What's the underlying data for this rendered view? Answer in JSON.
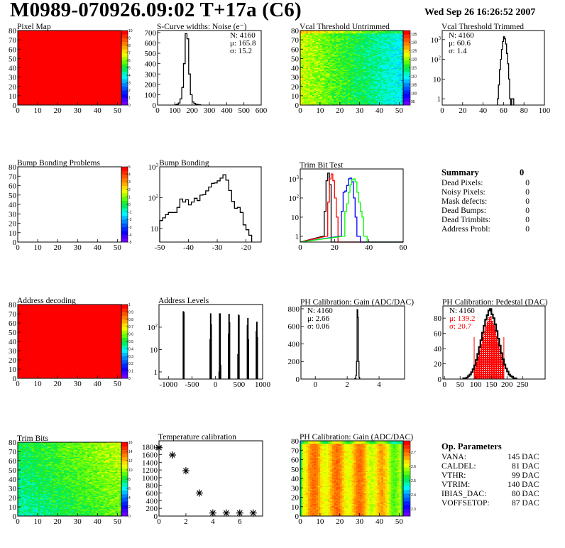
{
  "header": {
    "title": "M0989-070926.09:02 T+17a (C6)",
    "date": "Wed Sep 26 16:26:52 2007"
  },
  "summary": {
    "title": "Summary",
    "total": "0",
    "rows": [
      {
        "label": "Dead Pixels:",
        "value": "0"
      },
      {
        "label": "Noisy Pixels:",
        "value": "0"
      },
      {
        "label": "Mask defects:",
        "value": "0"
      },
      {
        "label": "Dead Bumps:",
        "value": "0"
      },
      {
        "label": "Dead Trimbits:",
        "value": "0"
      },
      {
        "label": "Address Probl:",
        "value": "0"
      }
    ]
  },
  "op_parameters": {
    "title": "Op. Parameters",
    "rows": [
      {
        "label": "VANA:",
        "value": "145 DAC"
      },
      {
        "label": "CALDEL:",
        "value": "81 DAC"
      },
      {
        "label": "VTHR:",
        "value": "99 DAC"
      },
      {
        "label": "VTRIM:",
        "value": "140 DAC"
      },
      {
        "label": "IBIAS_DAC:",
        "value": "80 DAC"
      },
      {
        "label": "VOFFSETOP:",
        "value": "87 DAC"
      }
    ]
  },
  "chart_data": [
    {
      "type": "heatmap",
      "title": "Pixel Map",
      "xlim": [
        0,
        52
      ],
      "ylim": [
        0,
        80
      ],
      "xticks": [
        0,
        10,
        20,
        30,
        40,
        50
      ],
      "yticks": [
        0,
        10,
        20,
        30,
        40,
        50,
        60,
        70,
        80
      ],
      "zlim": [
        0,
        10
      ],
      "zticks": [
        "0",
        "1",
        "2",
        "3",
        "4",
        "5",
        "6",
        "7",
        "8",
        "9",
        "10"
      ],
      "uniform_value": 10
    },
    {
      "type": "bar",
      "title": "S-Curve widths: Noise (e⁻)",
      "xlim": [
        0,
        600
      ],
      "ylim": [
        0,
        720
      ],
      "xticks": [
        0,
        100,
        200,
        300,
        400,
        500,
        600
      ],
      "yticks": [
        0,
        100,
        200,
        300,
        400,
        500,
        600,
        700
      ],
      "bin_width": 10,
      "bins": [
        [
          100,
          3
        ],
        [
          110,
          8
        ],
        [
          120,
          20
        ],
        [
          130,
          60
        ],
        [
          140,
          170
        ],
        [
          150,
          400
        ],
        [
          160,
          690
        ],
        [
          170,
          640
        ],
        [
          180,
          300
        ],
        [
          190,
          100
        ],
        [
          200,
          30
        ],
        [
          210,
          15
        ],
        [
          220,
          8
        ],
        [
          230,
          5
        ],
        [
          240,
          2
        ]
      ],
      "stats": [
        "N: 4160",
        "μ: 165.8",
        "σ: 15.2"
      ]
    },
    {
      "type": "heatmap",
      "title": "Vcal Threshold Untrimmed",
      "xlim": [
        0,
        52
      ],
      "ylim": [
        0,
        80
      ],
      "xticks": [
        0,
        10,
        20,
        30,
        40,
        50
      ],
      "yticks": [
        0,
        10,
        20,
        30,
        40,
        50,
        60,
        70,
        80
      ],
      "zlim": [
        93,
        137
      ],
      "zticks": [
        "95",
        "100",
        "105",
        "110",
        "115",
        "120",
        "125",
        "130",
        "135"
      ]
    },
    {
      "type": "bar",
      "title": "Vcal Threshold Trimmed",
      "log_y": true,
      "xlim": [
        0,
        100
      ],
      "ylim": [
        0.48,
        2900
      ],
      "xticks": [
        0,
        20,
        40,
        60,
        80,
        100
      ],
      "yticks": [
        1,
        10,
        100,
        1000
      ],
      "bin_width": 1,
      "bins": [
        [
          54,
          1
        ],
        [
          55,
          5
        ],
        [
          56,
          30
        ],
        [
          57,
          100
        ],
        [
          58,
          320
        ],
        [
          59,
          800
        ],
        [
          60,
          1400
        ],
        [
          61,
          1100
        ],
        [
          62,
          600
        ],
        [
          63,
          200
        ],
        [
          64,
          60
        ],
        [
          65,
          10
        ],
        [
          66,
          1
        ],
        [
          67,
          0
        ],
        [
          68,
          1
        ],
        [
          69,
          1
        ]
      ],
      "stats": [
        "N: 4160",
        "μ: 60.6",
        "σ:  1.4"
      ]
    },
    {
      "type": "heatmap",
      "title": "Bump Bonding Problems",
      "xlim": [
        0,
        52
      ],
      "ylim": [
        0,
        80
      ],
      "xticks": [
        0,
        10,
        20,
        30,
        40,
        50
      ],
      "yticks": [
        0,
        10,
        20,
        30,
        40,
        50,
        60,
        70,
        80
      ],
      "zlim": [
        -5,
        5
      ],
      "zticks": [
        "-5",
        "-4",
        "-3",
        "-2",
        "-1",
        "0",
        "1",
        "2",
        "3",
        "4",
        "5"
      ],
      "empty": true
    },
    {
      "type": "bar",
      "title": "Bump Bonding",
      "log_y": true,
      "xlim": [
        -50,
        -14.7
      ],
      "ylim": [
        3.6,
        1000
      ],
      "xticks": [
        -50,
        -40,
        -30,
        -20
      ],
      "yticks": [
        10,
        100,
        1000
      ],
      "bin_width": 1,
      "bins": [
        [
          -50,
          18
        ],
        [
          -49,
          22
        ],
        [
          -48,
          28
        ],
        [
          -47,
          33
        ],
        [
          -46,
          33
        ],
        [
          -45,
          33
        ],
        [
          -44,
          48
        ],
        [
          -43,
          90
        ],
        [
          -42,
          72
        ],
        [
          -41,
          85
        ],
        [
          -40,
          58
        ],
        [
          -39,
          72
        ],
        [
          -38,
          95
        ],
        [
          -37,
          80
        ],
        [
          -36,
          120
        ],
        [
          -35,
          125
        ],
        [
          -34,
          165
        ],
        [
          -33,
          220
        ],
        [
          -32,
          290
        ],
        [
          -31,
          300
        ],
        [
          -30,
          350
        ],
        [
          -29,
          430
        ],
        [
          -28,
          550
        ],
        [
          -27,
          370
        ],
        [
          -26,
          170
        ],
        [
          -25,
          75
        ],
        [
          -24,
          45
        ],
        [
          -23,
          48
        ],
        [
          -22,
          33
        ],
        [
          -21,
          13
        ],
        [
          -20,
          9
        ],
        [
          -19,
          6
        ]
      ]
    },
    {
      "type": "bar",
      "title": "Trim Bit Test",
      "log_y": true,
      "xlim": [
        0,
        60
      ],
      "ylim": [
        0.5,
        3300
      ],
      "xticks": [
        0,
        20,
        40,
        60
      ],
      "yticks": [
        1,
        10,
        100,
        1000
      ],
      "bin_width": 1,
      "series": [
        {
          "color": "#000000",
          "bins": [
            [
              13,
              1
            ],
            [
              14,
              20
            ],
            [
              15,
              800
            ],
            [
              16,
              2000
            ],
            [
              17,
              500
            ]
          ]
        },
        {
          "color": "#ff0000",
          "bins": [
            [
              15,
              1
            ],
            [
              16,
              60
            ],
            [
              17,
              1000
            ],
            [
              18,
              1800
            ],
            [
              19,
              800
            ],
            [
              20,
              100
            ],
            [
              21,
              10
            ]
          ]
        },
        {
          "color": "#0000ff",
          "bins": [
            [
              23,
              1
            ],
            [
              24,
              20
            ],
            [
              25,
              200
            ],
            [
              26,
              230
            ],
            [
              27,
              450
            ],
            [
              28,
              1000
            ],
            [
              29,
              1100
            ],
            [
              30,
              700
            ],
            [
              31,
              100
            ],
            [
              32,
              10
            ],
            [
              33,
              1
            ],
            [
              34,
              1
            ]
          ]
        },
        {
          "color": "#00ff00",
          "bins": [
            [
              25,
              1
            ],
            [
              26,
              20
            ],
            [
              27,
              50
            ],
            [
              28,
              200
            ],
            [
              29,
              500
            ],
            [
              30,
              900
            ],
            [
              31,
              1000
            ],
            [
              32,
              700
            ],
            [
              33,
              200
            ],
            [
              34,
              60
            ],
            [
              35,
              20
            ],
            [
              36,
              10
            ],
            [
              37,
              1
            ],
            [
              38,
              1
            ]
          ]
        }
      ]
    },
    {
      "type": "heatmap",
      "title": "Address decoding",
      "xlim": [
        0,
        52
      ],
      "ylim": [
        0,
        80
      ],
      "xticks": [
        0,
        10,
        20,
        30,
        40,
        50
      ],
      "yticks": [
        0,
        10,
        20,
        30,
        40,
        50,
        60,
        70,
        80
      ],
      "zlim": [
        0,
        1
      ],
      "zticks": [
        "0",
        "0.1",
        "0.2",
        "0.3",
        "0.4",
        "0.5",
        "0.6",
        "0.7",
        "0.8",
        "0.9",
        "1"
      ],
      "uniform_value": 1
    },
    {
      "type": "bar",
      "title": "Address Levels",
      "log_y": true,
      "xlim": [
        -1200,
        1000
      ],
      "ylim": [
        0.48,
        1030
      ],
      "xticks": [
        -1000,
        -500,
        0,
        500,
        1000
      ],
      "yticks": [
        1,
        10,
        100
      ],
      "bin_width": 10,
      "bins": [
        [
          -690,
          500
        ],
        [
          -680,
          450
        ],
        [
          -120,
          28
        ],
        [
          -110,
          400
        ],
        [
          -100,
          130
        ],
        [
          70,
          1
        ],
        [
          80,
          400
        ],
        [
          90,
          400
        ],
        [
          100,
          2
        ],
        [
          270,
          50
        ],
        [
          280,
          380
        ],
        [
          290,
          160
        ],
        [
          470,
          6
        ],
        [
          480,
          350
        ],
        [
          490,
          330
        ],
        [
          670,
          120
        ],
        [
          680,
          250
        ],
        [
          690,
          28
        ],
        [
          860,
          65
        ],
        [
          870,
          170
        ],
        [
          880,
          35
        ]
      ]
    },
    {
      "type": "bar",
      "title": "PH Calibration: Gain (ADC/DAC)",
      "xlim": [
        -0.9,
        5.6
      ],
      "ylim": [
        0,
        832
      ],
      "xticks": [
        0,
        2,
        4
      ],
      "yticks": [
        0,
        200,
        400,
        600,
        800
      ],
      "bin_width": 0.04,
      "bins": [
        [
          2.46,
          3
        ],
        [
          2.5,
          10
        ],
        [
          2.54,
          40
        ],
        [
          2.58,
          200
        ],
        [
          2.62,
          790
        ],
        [
          2.66,
          700
        ],
        [
          2.7,
          200
        ],
        [
          2.74,
          20
        ]
      ],
      "stats": [
        "N: 4160",
        "μ: 2.66",
        "σ: 0.06"
      ]
    },
    {
      "type": "bar",
      "title": "PH Calibration: Pedestal (DAC)",
      "xlim": [
        -5,
        322
      ],
      "ylim": [
        0,
        96
      ],
      "xticks": [
        0,
        50,
        100,
        150,
        200,
        250
      ],
      "yticks": [
        0,
        20,
        40,
        60,
        80
      ],
      "bin_width": 5,
      "fit_range": [
        95,
        190
      ],
      "fit_color": "#ff0000",
      "bins": [
        [
          60,
          1
        ],
        [
          65,
          1
        ],
        [
          70,
          2
        ],
        [
          75,
          4
        ],
        [
          80,
          6
        ],
        [
          85,
          9
        ],
        [
          90,
          13
        ],
        [
          95,
          18
        ],
        [
          100,
          25
        ],
        [
          105,
          33
        ],
        [
          110,
          42
        ],
        [
          115,
          51
        ],
        [
          120,
          61
        ],
        [
          125,
          70
        ],
        [
          130,
          78
        ],
        [
          135,
          84
        ],
        [
          140,
          90
        ],
        [
          145,
          92
        ],
        [
          150,
          85
        ],
        [
          155,
          80
        ],
        [
          160,
          72
        ],
        [
          165,
          63
        ],
        [
          170,
          53
        ],
        [
          175,
          44
        ],
        [
          180,
          34
        ],
        [
          185,
          26
        ],
        [
          190,
          19
        ],
        [
          195,
          14
        ],
        [
          200,
          10
        ],
        [
          205,
          6
        ],
        [
          210,
          4
        ],
        [
          215,
          3
        ],
        [
          220,
          1
        ],
        [
          225,
          1
        ]
      ],
      "stats": [
        "N: 4160",
        "μ: 139.2",
        "σ: 20.7"
      ]
    },
    {
      "type": "heatmap",
      "title": "Trim Bits",
      "xlim": [
        0,
        52
      ],
      "ylim": [
        0,
        80
      ],
      "xticks": [
        0,
        10,
        20,
        30,
        40,
        50
      ],
      "yticks": [
        0,
        10,
        20,
        30,
        40,
        50,
        60,
        70,
        80
      ],
      "zlim": [
        0,
        16
      ],
      "zticks": [
        "0",
        "2",
        "4",
        "6",
        "8",
        "10",
        "12",
        "14",
        "16"
      ]
    },
    {
      "type": "scatter",
      "title": "Temperature calibration",
      "xlim": [
        0,
        7.7
      ],
      "ylim": [
        0,
        1960
      ],
      "xticks": [
        0,
        2,
        4,
        6
      ],
      "yticks": [
        0,
        200,
        400,
        600,
        800,
        1000,
        1200,
        1400,
        1600,
        1800
      ],
      "marker": "star",
      "x": [
        0,
        1,
        2,
        3,
        4,
        5,
        6,
        7
      ],
      "y": [
        1780,
        1590,
        1180,
        600,
        80,
        80,
        80,
        80
      ]
    },
    {
      "type": "heatmap",
      "title": "PH Calibration: Gain (ADC/DAC)",
      "xlim": [
        0,
        52
      ],
      "ylim": [
        0,
        80
      ],
      "xticks": [
        0,
        10,
        20,
        30,
        40,
        50
      ],
      "yticks": [
        0,
        10,
        20,
        30,
        40,
        50,
        60,
        70,
        80
      ],
      "zlim": [
        2.25,
        2.78
      ],
      "zticks": [
        "2.3",
        "2.4",
        "2.5",
        "2.6",
        "2.7"
      ]
    }
  ]
}
